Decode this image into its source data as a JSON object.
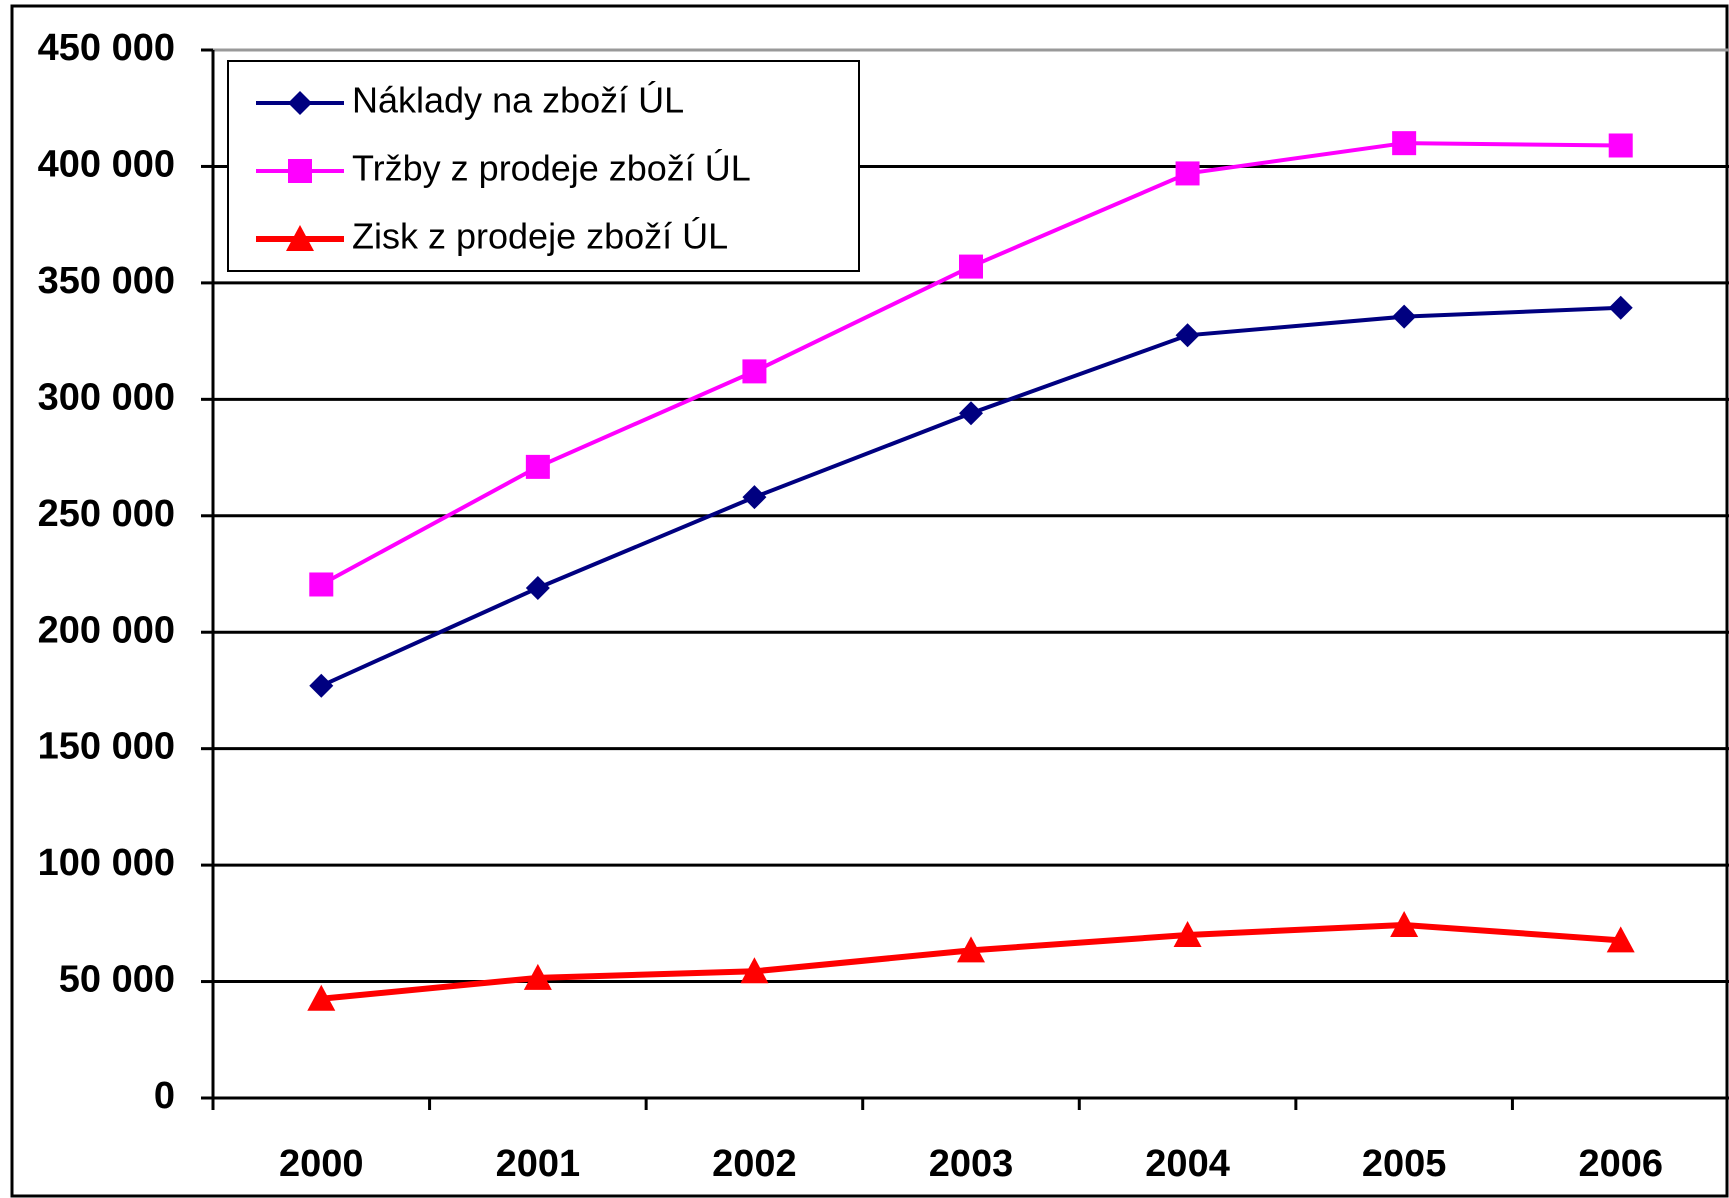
{
  "chart_data": {
    "type": "line",
    "categories": [
      "2000",
      "2001",
      "2002",
      "2003",
      "2004",
      "2005",
      "2006"
    ],
    "series": [
      {
        "name": "Náklady na zboží ÚL",
        "color": "#000080",
        "marker": "diamond",
        "values": [
          177000,
          219000,
          258000,
          294000,
          327500,
          335500,
          339300
        ]
      },
      {
        "name": "Tržby z prodeje zboží ÚL",
        "color": "#ff00ff",
        "marker": "square",
        "values": [
          220500,
          271000,
          312000,
          357000,
          397000,
          410000,
          409000
        ]
      },
      {
        "name": "Zisk z prodeje zboží ÚL",
        "color": "#ff0000",
        "marker": "triangle",
        "values": [
          42600,
          51600,
          54400,
          63400,
          70000,
          74300,
          67700
        ]
      }
    ],
    "ylim": [
      0,
      450000
    ],
    "yticks": [
      0,
      {
        "value": 50000,
        "label": "50 000"
      },
      {
        "value": 100000,
        "label": "100 000"
      },
      {
        "value": 150000,
        "label": "150 000"
      },
      {
        "value": 200000,
        "label": "200 000"
      },
      {
        "value": 250000,
        "label": "250 000"
      },
      {
        "value": 300000,
        "label": "300 000"
      },
      {
        "value": 350000,
        "label": "350 000"
      },
      {
        "value": 400000,
        "label": "400 000"
      },
      {
        "value": 450000,
        "label": "450 000"
      }
    ],
    "grid": true,
    "legend": "top-left"
  }
}
